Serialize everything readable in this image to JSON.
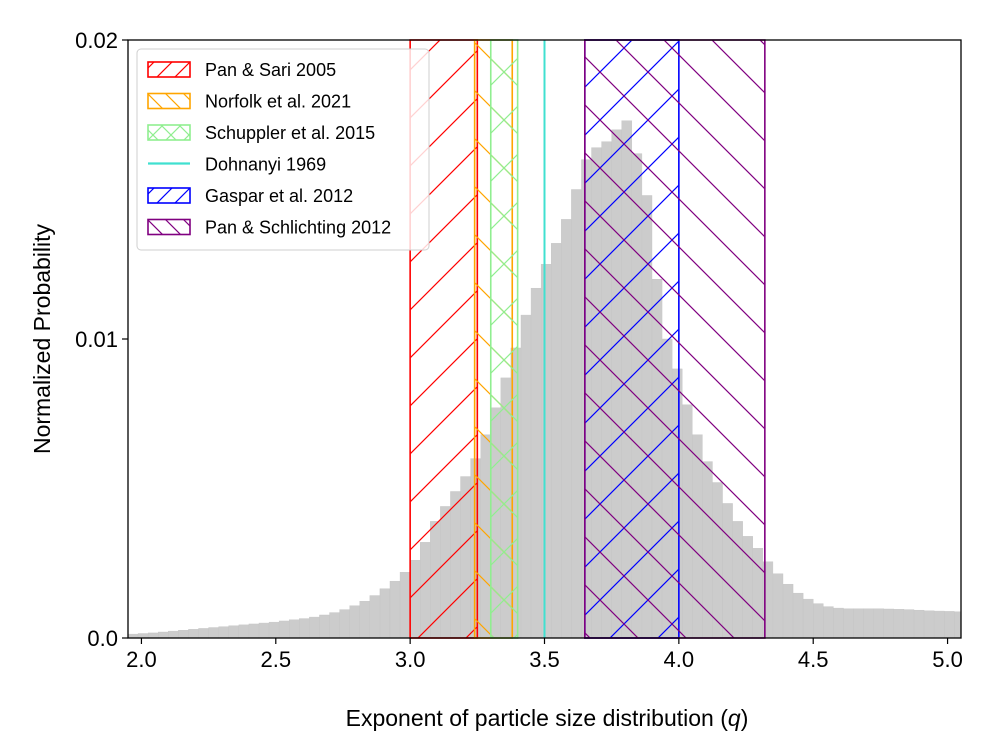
{
  "chart_data": {
    "type": "histogram",
    "title": "",
    "xlabel_main": "Exponent of particle size distribution (",
    "xlabel_var": "q",
    "xlabel_close": ")",
    "ylabel": "Normalized Probability",
    "xlim": [
      1.95,
      5.05
    ],
    "ylim": [
      0.0,
      0.02
    ],
    "xticks": [
      2.0,
      2.5,
      3.0,
      3.5,
      4.0,
      4.5,
      5.0
    ],
    "xtick_labels": [
      "2.0",
      "2.5",
      "3.0",
      "3.5",
      "4.0",
      "4.5",
      "5.0"
    ],
    "yticks": [
      0.0,
      0.01,
      0.02
    ],
    "ytick_labels": [
      "0.0",
      "0.01",
      "0.02"
    ],
    "histogram": {
      "color": "#cccccc",
      "bin_start": 1.95,
      "bin_width": 0.0375,
      "values": [
        0.00013,
        0.00015,
        0.00017,
        0.0002,
        0.00023,
        0.00026,
        0.00029,
        0.00032,
        0.00035,
        0.00038,
        0.00041,
        0.00044,
        0.00047,
        0.0005,
        0.00053,
        0.00057,
        0.00061,
        0.00065,
        0.0007,
        0.00077,
        0.00085,
        0.00095,
        0.00108,
        0.00123,
        0.00142,
        0.00165,
        0.0019,
        0.0022,
        0.0026,
        0.0032,
        0.0039,
        0.0044,
        0.0049,
        0.0054,
        0.006,
        0.0068,
        0.0077,
        0.0087,
        0.0097,
        0.0108,
        0.0117,
        0.0125,
        0.0132,
        0.014,
        0.015,
        0.016,
        0.0164,
        0.0166,
        0.017,
        0.0173,
        0.0162,
        0.0148,
        0.012,
        0.01,
        0.009,
        0.0078,
        0.0068,
        0.0059,
        0.0052,
        0.0045,
        0.0039,
        0.0034,
        0.003,
        0.00255,
        0.00215,
        0.0018,
        0.0015,
        0.0013,
        0.00115,
        0.00105,
        0.001,
        0.00098,
        0.00098,
        0.00098,
        0.00098,
        0.00097,
        0.00096,
        0.00095,
        0.00093,
        0.00091,
        0.0009,
        0.00089,
        0.00088
      ]
    },
    "lines": [
      {
        "name": "Dohnanyi 1969",
        "x": 3.5,
        "color": "#40e0d0"
      }
    ],
    "bands": [
      {
        "name": "Pan & Sari 2005",
        "x0": 3.0,
        "x1": 3.25,
        "color": "#ff0000",
        "hatch": "/"
      },
      {
        "name": "Norfolk et al. 2021",
        "x0": 3.24,
        "x1": 3.38,
        "color": "#ffa500",
        "hatch": "\\"
      },
      {
        "name": "Schuppler et al. 2015",
        "x0": 3.3,
        "x1": 3.4,
        "color": "#90ee90",
        "hatch": "x"
      },
      {
        "name": "Gaspar et al. 2012",
        "x0": 3.65,
        "x1": 4.0,
        "color": "#0000ff",
        "hatch": "/"
      },
      {
        "name": "Pan & Schlichting 2012",
        "x0": 3.65,
        "x1": 4.32,
        "color": "#800080",
        "hatch": "\\"
      }
    ],
    "legend": {
      "placement": "upper-left",
      "entries": [
        {
          "label": "Pan & Sari 2005",
          "kind": "band",
          "color": "#ff0000",
          "hatch": "/"
        },
        {
          "label": "Norfolk et al. 2021",
          "kind": "band",
          "color": "#ffa500",
          "hatch": "\\"
        },
        {
          "label": "Schuppler et al. 2015",
          "kind": "band",
          "color": "#90ee90",
          "hatch": "x"
        },
        {
          "label": "Dohnanyi 1969",
          "kind": "line",
          "color": "#40e0d0",
          "hatch": ""
        },
        {
          "label": "Gaspar et al. 2012",
          "kind": "band",
          "color": "#0000ff",
          "hatch": "/"
        },
        {
          "label": "Pan & Schlichting 2012",
          "kind": "band",
          "color": "#800080",
          "hatch": "\\"
        }
      ]
    }
  }
}
